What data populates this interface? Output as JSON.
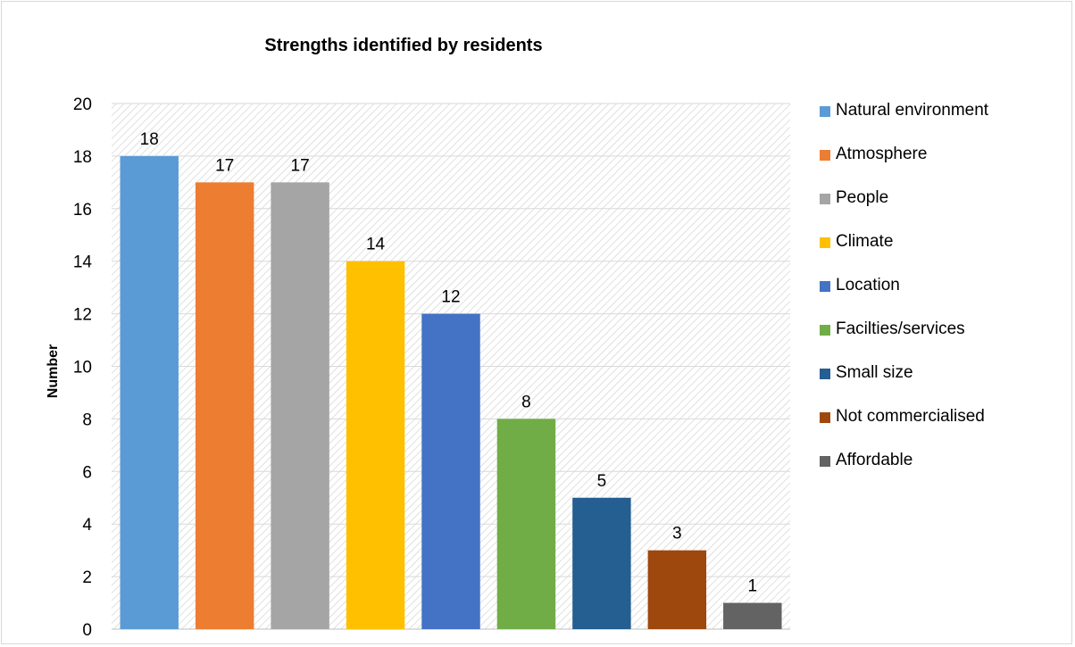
{
  "chart_data": {
    "type": "bar",
    "title": "Strengths identified by residents",
    "xlabel": "",
    "ylabel": "Number",
    "ylim": [
      0,
      20
    ],
    "yticks": [
      0,
      2,
      4,
      6,
      8,
      10,
      12,
      14,
      16,
      18,
      20
    ],
    "grid": true,
    "legend_position": "right",
    "categories": [
      "Natural environment",
      "Atmosphere",
      "People",
      "Climate",
      "Location",
      "Facilties/services",
      "Small size",
      "Not commercialised",
      "Affordable"
    ],
    "values": [
      18,
      17,
      17,
      14,
      12,
      8,
      5,
      3,
      1
    ],
    "colors": [
      "#5b9bd5",
      "#ed7d31",
      "#a5a5a5",
      "#ffc000",
      "#4472c4",
      "#70ad47",
      "#255e91",
      "#9e480e",
      "#636363"
    ],
    "data_labels": [
      "18",
      "17",
      "17",
      "14",
      "12",
      "8",
      "5",
      "3",
      "1"
    ]
  }
}
